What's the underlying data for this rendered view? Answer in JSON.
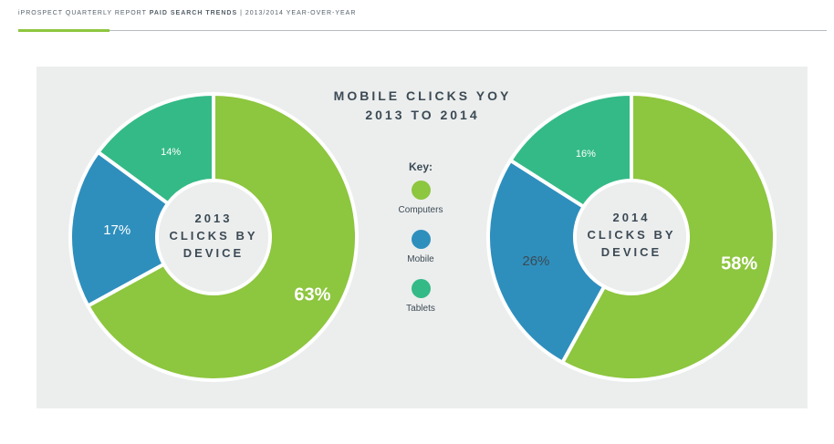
{
  "header": {
    "left": "iPROSPECT QUARTERLY REPORT ",
    "bold": "PAID SEARCH TRENDS",
    "sep": "  |  ",
    "right": "2013/2014 YEAR-OVER-YEAR"
  },
  "title": {
    "line1": "MOBILE CLICKS YOY",
    "line2": "2013 TO 2014"
  },
  "key": {
    "title": "Key:",
    "items": [
      {
        "label": "Computers",
        "color": "#8dc63f"
      },
      {
        "label": "Mobile",
        "color": "#2e8fbd"
      },
      {
        "label": "Tablets",
        "color": "#34ba87"
      }
    ]
  },
  "chart_data": [
    {
      "type": "pie",
      "center_label": [
        "2013",
        "CLICKS BY",
        "DEVICE"
      ],
      "categories": [
        "Computers",
        "Mobile",
        "Tablets"
      ],
      "values": [
        63,
        17,
        14
      ],
      "labels": [
        "63%",
        "17%",
        "14%"
      ],
      "colors": [
        "#8dc63f",
        "#2e8fbd",
        "#34ba87"
      ]
    },
    {
      "type": "pie",
      "center_label": [
        "2014",
        "CLICKS BY",
        "DEVICE"
      ],
      "categories": [
        "Computers",
        "Mobile",
        "Tablets"
      ],
      "values": [
        58,
        26,
        16
      ],
      "labels": [
        "58%",
        "26%",
        "16%"
      ],
      "colors": [
        "#8dc63f",
        "#2e8fbd",
        "#34ba87"
      ]
    }
  ]
}
